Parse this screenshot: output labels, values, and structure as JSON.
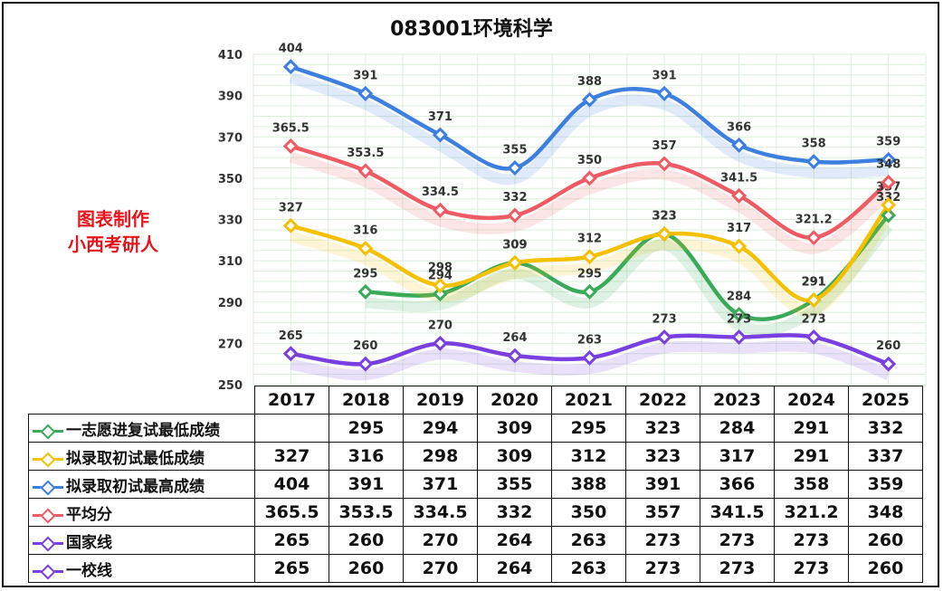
{
  "chart_data": {
    "type": "line",
    "title": "083001环境科学",
    "categories": [
      "2017",
      "2018",
      "2019",
      "2020",
      "2021",
      "2022",
      "2023",
      "2024",
      "2025"
    ],
    "ylim": [
      250,
      410
    ],
    "yticks": [
      250,
      270,
      290,
      310,
      330,
      350,
      370,
      390,
      410
    ],
    "grid": true,
    "series": [
      {
        "name": "一志愿进复试最低成绩",
        "color": "#3aaa5a",
        "values": [
          null,
          295,
          294,
          309,
          295,
          323,
          284,
          291,
          332
        ],
        "labels": [
          "",
          "295",
          "294",
          "309",
          "295",
          "323",
          "284",
          "291",
          "332"
        ]
      },
      {
        "name": "拟录取初试最低成绩",
        "color": "#f5c000",
        "values": [
          327,
          316,
          298,
          309,
          312,
          323,
          317,
          291,
          337
        ],
        "labels": [
          "327",
          "316",
          "298",
          "309",
          "312",
          "323",
          "317",
          "291",
          "337"
        ]
      },
      {
        "name": "拟录取初试最高成绩",
        "color": "#3d7fe0",
        "values": [
          404,
          391,
          371,
          355,
          388,
          391,
          366,
          358,
          359
        ],
        "labels": [
          "404",
          "391",
          "371",
          "355",
          "388",
          "391",
          "366",
          "358",
          "359"
        ]
      },
      {
        "name": "平均分",
        "color": "#ef5b64",
        "values": [
          365.5,
          353.5,
          334.5,
          332,
          350,
          357,
          341.5,
          321.2,
          348
        ],
        "labels": [
          "365.5",
          "353.5",
          "334.5",
          "332",
          "350",
          "357",
          "341.5",
          "321.2",
          "348"
        ]
      },
      {
        "name": "国家线",
        "color": "#7a3fe0",
        "values": [
          265,
          260,
          270,
          264,
          263,
          273,
          273,
          273,
          260
        ],
        "labels": [
          "265",
          "260",
          "270",
          "264",
          "263",
          "273",
          "273",
          "273",
          "260"
        ]
      },
      {
        "name": "一校线",
        "color": "#7a3fe0",
        "values": [
          265,
          260,
          270,
          264,
          263,
          273,
          273,
          273,
          260
        ],
        "labels": [
          "265",
          "260",
          "270",
          "264",
          "263",
          "273",
          "273",
          "273",
          "260"
        ]
      }
    ]
  },
  "side_text": {
    "line1": "图表制作",
    "line2": "小西考研人"
  }
}
